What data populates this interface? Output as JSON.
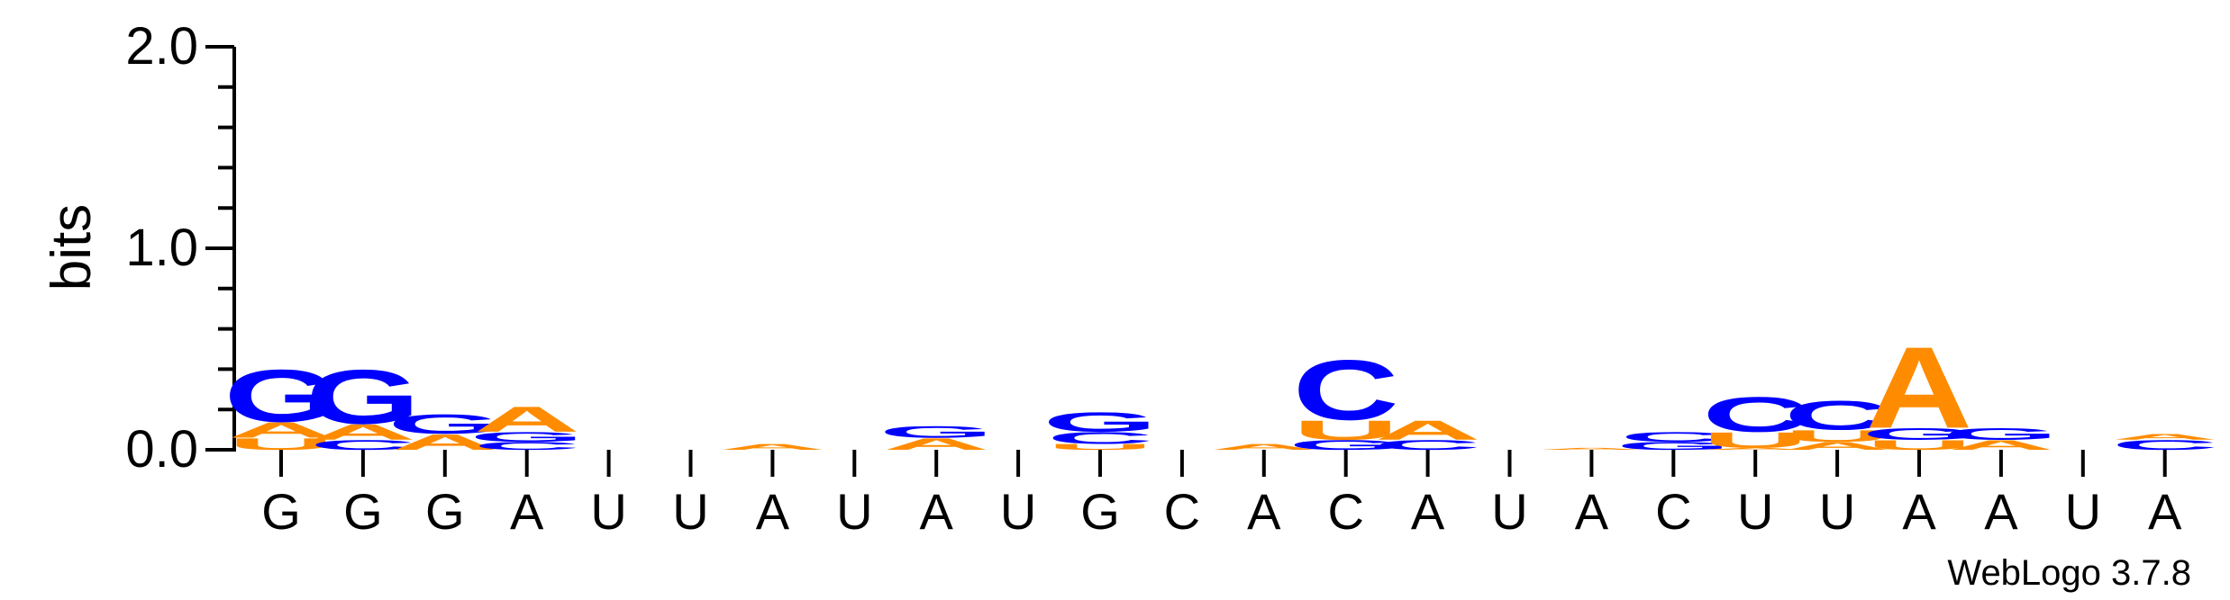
{
  "colors": {
    "A": "#ff8c00",
    "C": "#0000ff",
    "G": "#0000ff",
    "U": "#ff8c00",
    "axis": "#000000"
  },
  "credit": "WebLogo 3.7.8",
  "chart_data": {
    "type": "sequence-logo",
    "ylabel": "bits",
    "ylim": [
      0,
      2.0
    ],
    "yticks": [
      "0.0",
      "1.0",
      "2.0"
    ],
    "xlabel": "",
    "sequence": [
      "G",
      "G",
      "G",
      "A",
      "U",
      "U",
      "A",
      "U",
      "A",
      "U",
      "G",
      "C",
      "A",
      "C",
      "A",
      "U",
      "A",
      "C",
      "U",
      "U",
      "A",
      "A",
      "U",
      "A"
    ],
    "positions": [
      {
        "stack": [
          {
            "base": "U",
            "bits": 0.06
          },
          {
            "base": "A",
            "bits": 0.08
          },
          {
            "base": "G",
            "bits": 0.27
          }
        ]
      },
      {
        "stack": [
          {
            "base": "C",
            "bits": 0.05
          },
          {
            "base": "A",
            "bits": 0.08
          },
          {
            "base": "G",
            "bits": 0.28
          }
        ]
      },
      {
        "stack": [
          {
            "base": "A",
            "bits": 0.08
          },
          {
            "base": "G",
            "bits": 0.1
          }
        ]
      },
      {
        "stack": [
          {
            "base": "C",
            "bits": 0.04
          },
          {
            "base": "G",
            "bits": 0.05
          },
          {
            "base": "A",
            "bits": 0.13
          }
        ]
      },
      {
        "stack": []
      },
      {
        "stack": []
      },
      {
        "stack": [
          {
            "base": "A",
            "bits": 0.03
          }
        ]
      },
      {
        "stack": []
      },
      {
        "stack": [
          {
            "base": "A",
            "bits": 0.06
          },
          {
            "base": "G",
            "bits": 0.06
          }
        ]
      },
      {
        "stack": []
      },
      {
        "stack": [
          {
            "base": "U",
            "bits": 0.03
          },
          {
            "base": "C",
            "bits": 0.06
          },
          {
            "base": "G",
            "bits": 0.1
          }
        ]
      },
      {
        "stack": []
      },
      {
        "stack": [
          {
            "base": "A",
            "bits": 0.03
          }
        ]
      },
      {
        "stack": [
          {
            "base": "G",
            "bits": 0.05
          },
          {
            "base": "U",
            "bits": 0.1
          },
          {
            "base": "C",
            "bits": 0.31
          }
        ]
      },
      {
        "stack": [
          {
            "base": "C",
            "bits": 0.05
          },
          {
            "base": "A",
            "bits": 0.1
          }
        ]
      },
      {
        "stack": []
      },
      {
        "stack": [
          {
            "base": "A",
            "bits": 0.01
          }
        ]
      },
      {
        "stack": [
          {
            "base": "G",
            "bits": 0.04
          },
          {
            "base": "C",
            "bits": 0.05
          }
        ]
      },
      {
        "stack": [
          {
            "base": "A",
            "bits": 0.01
          },
          {
            "base": "U",
            "bits": 0.08
          },
          {
            "base": "C",
            "bits": 0.18
          }
        ]
      },
      {
        "stack": [
          {
            "base": "A",
            "bits": 0.04
          },
          {
            "base": "U",
            "bits": 0.06
          },
          {
            "base": "C",
            "bits": 0.15
          }
        ]
      },
      {
        "stack": [
          {
            "base": "U",
            "bits": 0.05
          },
          {
            "base": "G",
            "bits": 0.06
          },
          {
            "base": "A",
            "bits": 0.42
          }
        ]
      },
      {
        "stack": [
          {
            "base": "A",
            "bits": 0.05
          },
          {
            "base": "G",
            "bits": 0.06
          }
        ]
      },
      {
        "stack": []
      },
      {
        "stack": [
          {
            "base": "C",
            "bits": 0.05
          },
          {
            "base": "A",
            "bits": 0.03
          }
        ]
      }
    ]
  }
}
